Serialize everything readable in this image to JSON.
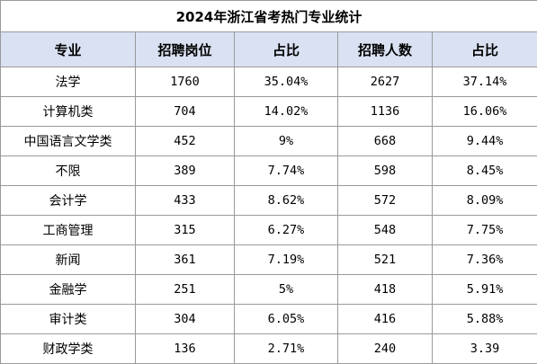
{
  "title": "2024年浙江省考热门专业统计",
  "headers": [
    "专业",
    "招聘岗位",
    "占比",
    "招聘人数",
    "占比"
  ],
  "rows": [
    [
      "法学",
      "1760",
      "35.04%",
      "2627",
      "37.14%"
    ],
    [
      "计算机类",
      "704",
      "14.02%",
      "1136",
      "16.06%"
    ],
    [
      "中国语言文学类",
      "452",
      "9%",
      "668",
      "9.44%"
    ],
    [
      "不限",
      "389",
      "7.74%",
      "598",
      "8.45%"
    ],
    [
      "会计学",
      "433",
      "8.62%",
      "572",
      "8.09%"
    ],
    [
      "工商管理",
      "315",
      "6.27%",
      "548",
      "7.75%"
    ],
    [
      "新闻",
      "361",
      "7.19%",
      "521",
      "7.36%"
    ],
    [
      "金融学",
      "251",
      "5%",
      "418",
      "5.91%"
    ],
    [
      "审计类",
      "304",
      "6.05%",
      "416",
      "5.88%"
    ],
    [
      "财政学类",
      "136",
      "2.71%",
      "240",
      "3.39"
    ]
  ],
  "colors": {
    "header_bg": "#d9e1f2",
    "border": "#9a9a9a"
  }
}
